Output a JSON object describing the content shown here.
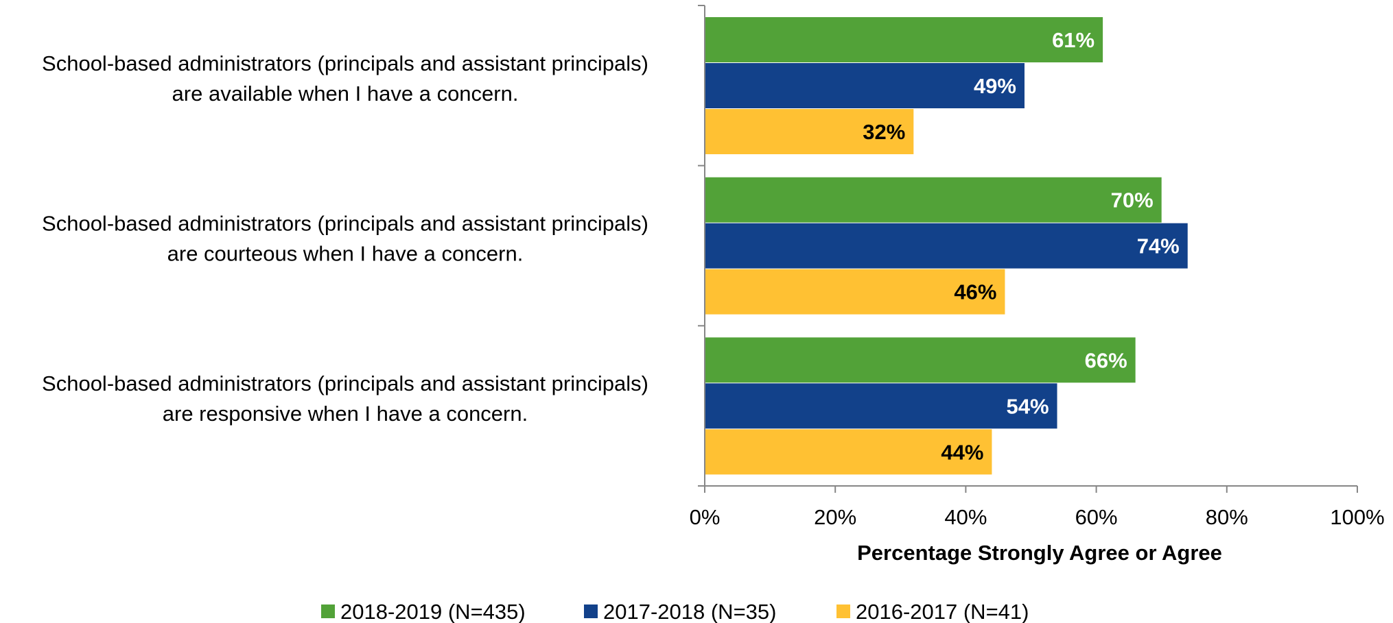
{
  "chart_data": {
    "type": "bar",
    "orientation": "horizontal",
    "categories": [
      [
        "School-based administrators (principals and assistant principals)",
        "are available when I have a concern."
      ],
      [
        "School-based administrators (principals and assistant principals)",
        "are courteous when I have a concern."
      ],
      [
        "School-based administrators (principals and assistant principals)",
        "are responsive when I have a concern."
      ]
    ],
    "series": [
      {
        "name": "2018-2019 (N=435)",
        "color": "#52A238",
        "label_color": "#ffffff",
        "values": [
          61,
          70,
          66
        ]
      },
      {
        "name": "2017-2018 (N=35)",
        "color": "#12418A",
        "label_color": "#ffffff",
        "values": [
          49,
          74,
          54
        ]
      },
      {
        "name": "2016-2017 (N=41)",
        "color": "#FFC133",
        "label_color": "#000000",
        "values": [
          32,
          46,
          44
        ]
      }
    ],
    "xlabel": "Percentage Strongly Agree or Agree",
    "xlim": [
      0,
      100
    ],
    "xticks": [
      "0%",
      "20%",
      "40%",
      "60%",
      "80%",
      "100%"
    ],
    "value_suffix": "%",
    "grid": false,
    "legend_position": "bottom"
  }
}
